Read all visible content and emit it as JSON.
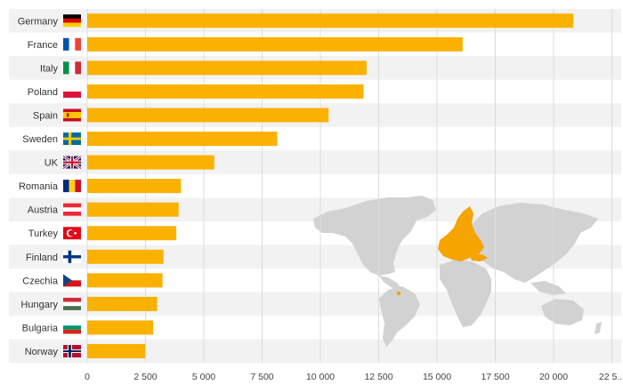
{
  "chart_data": {
    "type": "bar",
    "orientation": "horizontal",
    "categories": [
      "Germany",
      "France",
      "Italy",
      "Poland",
      "Spain",
      "Sweden",
      "UK",
      "Romania",
      "Austria",
      "Turkey",
      "Finland",
      "Czechia",
      "Hungary",
      "Bulgaria",
      "Norway"
    ],
    "flags": [
      "de",
      "fr",
      "it",
      "pl",
      "es",
      "se",
      "uk",
      "ro",
      "at",
      "tr",
      "fi",
      "cz",
      "hu",
      "bg",
      "no"
    ],
    "values": [
      20850,
      16100,
      11980,
      11850,
      10350,
      8150,
      5450,
      4020,
      3920,
      3820,
      3270,
      3230,
      3000,
      2830,
      2480
    ],
    "x_ticks": [
      "0",
      "2 500",
      "5 000",
      "7 500",
      "10 000",
      "12 500",
      "15 000",
      "17 500",
      "20 000",
      "22 5..."
    ],
    "xlim": [
      0,
      22500
    ],
    "bar_color": "#fbb100",
    "row_band_color": "#f2f2f2",
    "map_land_color": "#d2d2d2",
    "map_highlight_color": "#f5a400",
    "grid": true
  }
}
